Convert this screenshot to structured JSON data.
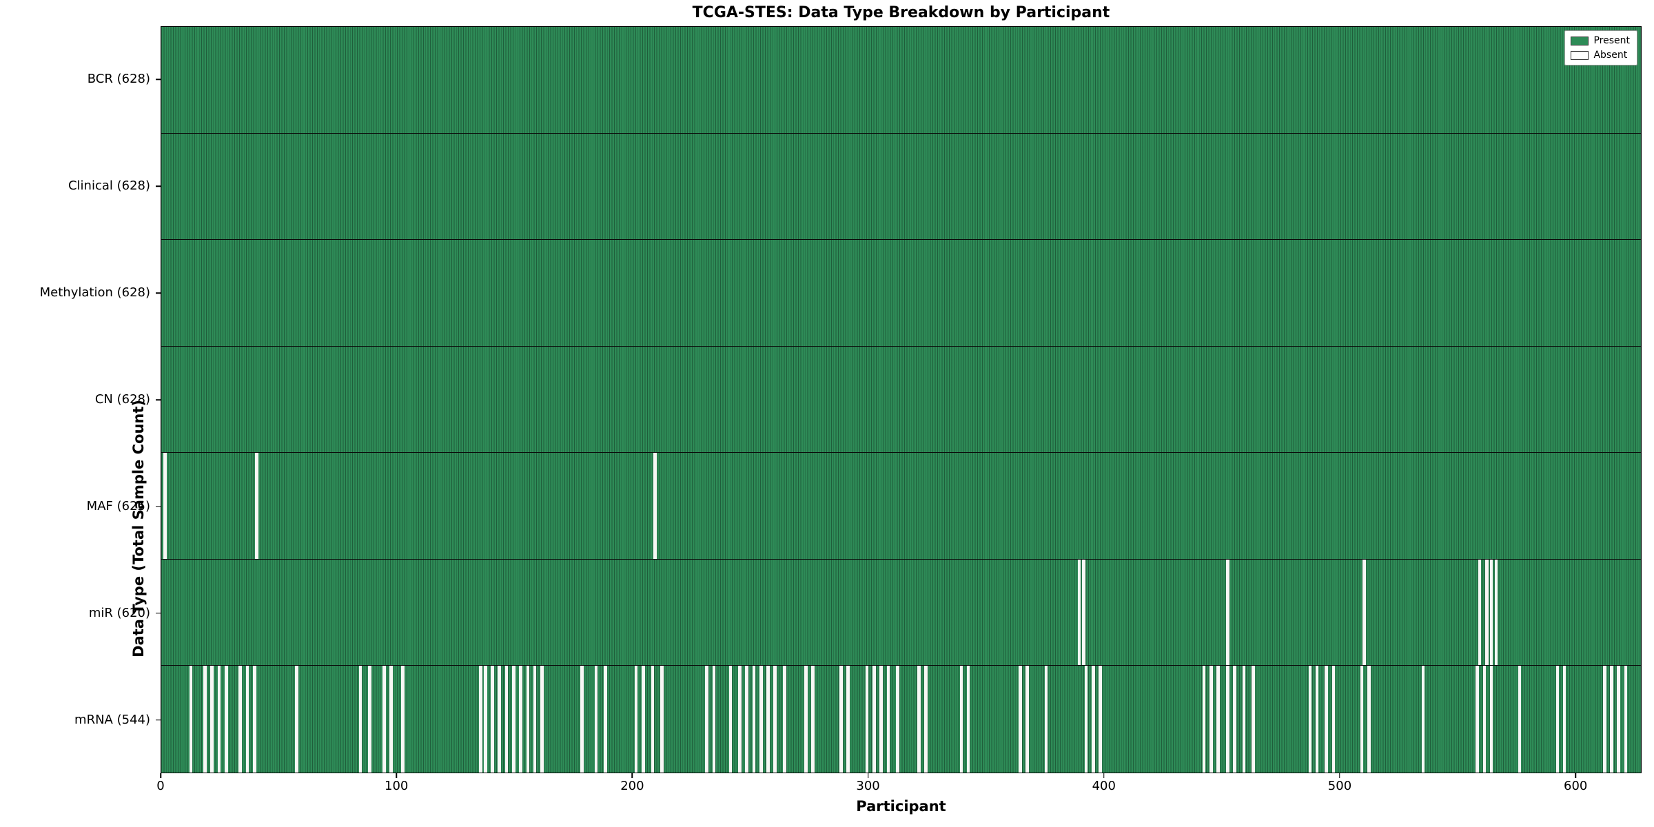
{
  "legend": {
    "present_label": "Present",
    "absent_label": "Absent"
  },
  "chart_data": {
    "type": "heatmap",
    "title": "TCGA-STES: Data Type Breakdown by Participant",
    "xlabel": "Participant",
    "ylabel": "Data Type (Total Sample Count)",
    "n_participants": 628,
    "x_ticks": [
      0,
      100,
      200,
      300,
      400,
      500,
      600
    ],
    "legend_entries": [
      "Present",
      "Absent"
    ],
    "colors": {
      "present": "#2e8b57",
      "absent": "#f7f7f5",
      "row_edge": "#0a0a0a"
    },
    "rows": [
      {
        "label": "BCR (628)",
        "data_type": "BCR",
        "present_count": 628,
        "absent_participants": []
      },
      {
        "label": "Clinical (628)",
        "data_type": "Clinical",
        "present_count": 628,
        "absent_participants": []
      },
      {
        "label": "Methylation (628)",
        "data_type": "Methylation",
        "present_count": 628,
        "absent_participants": []
      },
      {
        "label": "CN (628)",
        "data_type": "CN",
        "present_count": 628,
        "absent_participants": []
      },
      {
        "label": "MAF (625)",
        "data_type": "MAF",
        "present_count": 625,
        "absent_participants": [
          1,
          40,
          209
        ]
      },
      {
        "label": "miR (620)",
        "data_type": "miR",
        "present_count": 620,
        "absent_participants": [
          389,
          391,
          452,
          510,
          559,
          562,
          564,
          566
        ]
      },
      {
        "label": "mRNA (544)",
        "data_type": "mRNA",
        "present_count": 544,
        "absent_participants": [
          12,
          18,
          21,
          24,
          27,
          33,
          36,
          39,
          57,
          84,
          88,
          94,
          97,
          102,
          135,
          137,
          140,
          143,
          146,
          149,
          152,
          155,
          158,
          161,
          178,
          184,
          188,
          201,
          204,
          208,
          212,
          231,
          234,
          241,
          245,
          248,
          251,
          254,
          257,
          260,
          264,
          273,
          276,
          288,
          291,
          299,
          302,
          305,
          308,
          312,
          321,
          324,
          339,
          342,
          364,
          367,
          375,
          392,
          395,
          398,
          442,
          445,
          448,
          452,
          455,
          459,
          463,
          487,
          490,
          494,
          497,
          509,
          512,
          535,
          558,
          561,
          564,
          576,
          592,
          595,
          612,
          615,
          618,
          621
        ]
      }
    ]
  }
}
